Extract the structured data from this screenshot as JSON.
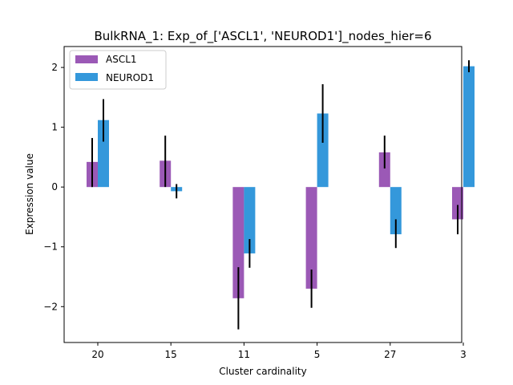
{
  "chart_data": {
    "type": "bar",
    "title": "BulkRNA_1: Exp_of_['ASCL1', 'NEUROD1']_nodes_hier=6",
    "xlabel": "Cluster cardinality",
    "ylabel": "Expression value",
    "categories": [
      "20",
      "15",
      "11",
      "5",
      "27",
      "3"
    ],
    "ylim": [
      -2.6,
      2.35
    ],
    "yticks": [
      -2,
      -1,
      0,
      1,
      2
    ],
    "ytick_labels": [
      "−2",
      "−1",
      "0",
      "1",
      "2"
    ],
    "grid": false,
    "legend_position": "top-left",
    "series": [
      {
        "name": "ASCL1",
        "color": "#9b59b6",
        "values": [
          0.42,
          0.44,
          -1.86,
          -1.7,
          0.58,
          -0.54
        ],
        "err_low": [
          0.0,
          0.0,
          -2.38,
          -2.02,
          0.31,
          -0.79
        ],
        "err_high": [
          0.82,
          0.86,
          -1.34,
          -1.38,
          0.86,
          -0.3
        ]
      },
      {
        "name": "NEUROD1",
        "color": "#3498db",
        "values": [
          1.12,
          -0.07,
          -1.11,
          1.23,
          -0.79,
          2.02
        ],
        "err_low": [
          0.76,
          -0.19,
          -1.35,
          0.74,
          -1.02,
          1.92
        ],
        "err_high": [
          1.47,
          0.05,
          -0.87,
          1.72,
          -0.54,
          2.12
        ]
      }
    ]
  }
}
